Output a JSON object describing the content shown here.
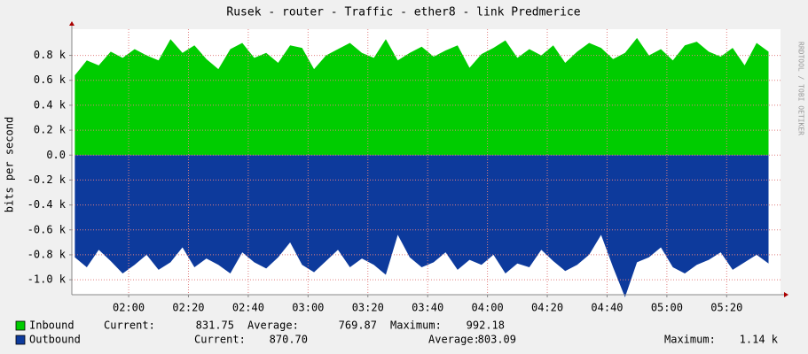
{
  "chart_data": {
    "type": "area",
    "title": "Rusek - router - Traffic - ether8 - link Predmerice",
    "y_label": "bits per second",
    "watermark": "RRDTOOL / TOBI OETIKER",
    "x": [
      102,
      106,
      110,
      114,
      118,
      122,
      126,
      130,
      134,
      138,
      142,
      146,
      150,
      154,
      158,
      162,
      166,
      170,
      174,
      178,
      182,
      186,
      190,
      194,
      198,
      202,
      206,
      210,
      214,
      218,
      222,
      226,
      230,
      234,
      238,
      242,
      246,
      250,
      254,
      258,
      262,
      266,
      270,
      274,
      278,
      282,
      286,
      290,
      294,
      298,
      302,
      306,
      310,
      314,
      318,
      322,
      326,
      330,
      334
    ],
    "xlim": [
      101,
      338
    ],
    "xticks": [
      {
        "value": 120,
        "label": "02:00"
      },
      {
        "value": 140,
        "label": "02:20"
      },
      {
        "value": 160,
        "label": "02:40"
      },
      {
        "value": 180,
        "label": "03:00"
      },
      {
        "value": 200,
        "label": "03:20"
      },
      {
        "value": 220,
        "label": "03:40"
      },
      {
        "value": 240,
        "label": "04:00"
      },
      {
        "value": 260,
        "label": "04:20"
      },
      {
        "value": 280,
        "label": "04:40"
      },
      {
        "value": 300,
        "label": "05:00"
      },
      {
        "value": 320,
        "label": "05:20"
      }
    ],
    "ylim": [
      -1120,
      1010
    ],
    "yticks": [
      {
        "value": -1000,
        "label": "-1.0 k"
      },
      {
        "value": -800,
        "label": "-0.8 k"
      },
      {
        "value": -600,
        "label": "-0.6 k"
      },
      {
        "value": -400,
        "label": "-0.4 k"
      },
      {
        "value": -200,
        "label": "-0.2 k"
      },
      {
        "value": 0,
        "label": "0.0"
      },
      {
        "value": 200,
        "label": "0.2 k"
      },
      {
        "value": 400,
        "label": "0.4 k"
      },
      {
        "value": 600,
        "label": "0.6 k"
      },
      {
        "value": 800,
        "label": "0.8 k"
      }
    ],
    "grid": true,
    "series": [
      {
        "name": "Inbound",
        "color": "#00cc00",
        "values": [
          640,
          760,
          720,
          830,
          780,
          850,
          800,
          760,
          930,
          820,
          880,
          770,
          690,
          850,
          900,
          780,
          820,
          740,
          880,
          860,
          690,
          800,
          850,
          900,
          820,
          780,
          930,
          760,
          820,
          870,
          790,
          840,
          880,
          700,
          810,
          860,
          920,
          780,
          850,
          800,
          880,
          740,
          830,
          900,
          860,
          770,
          820,
          940,
          800,
          850,
          760,
          880,
          910,
          830,
          790,
          860,
          720,
          900,
          830
        ],
        "stats": [
          {
            "label": "Current:",
            "value": 831.75
          },
          {
            "label": "Average:",
            "value": 769.87
          },
          {
            "label": "Maximum:",
            "value": 992.18
          }
        ]
      },
      {
        "name": "Outbound",
        "color": "#0d3a9c",
        "values": [
          -820,
          -900,
          -760,
          -850,
          -950,
          -880,
          -800,
          -920,
          -860,
          -740,
          -900,
          -830,
          -880,
          -950,
          -780,
          -860,
          -910,
          -820,
          -700,
          -880,
          -940,
          -850,
          -760,
          -900,
          -830,
          -880,
          -960,
          -640,
          -820,
          -900,
          -860,
          -780,
          -920,
          -840,
          -880,
          -800,
          -950,
          -870,
          -900,
          -760,
          -850,
          -930,
          -880,
          -800,
          -640,
          -900,
          -1140,
          -860,
          -820,
          -740,
          -900,
          -950,
          -880,
          -840,
          -780,
          -920,
          -860,
          -800,
          -870
        ],
        "stats": [
          {
            "label": "Current:",
            "value": {
              "value": 870.7,
              "label": "870.70"
            }
          },
          {
            "label": "Average:",
            "value": 803.09
          },
          {
            "label": "Maximum:",
            "value": {
              "value": 1140,
              "label": "1.14 k"
            }
          }
        ]
      }
    ]
  }
}
